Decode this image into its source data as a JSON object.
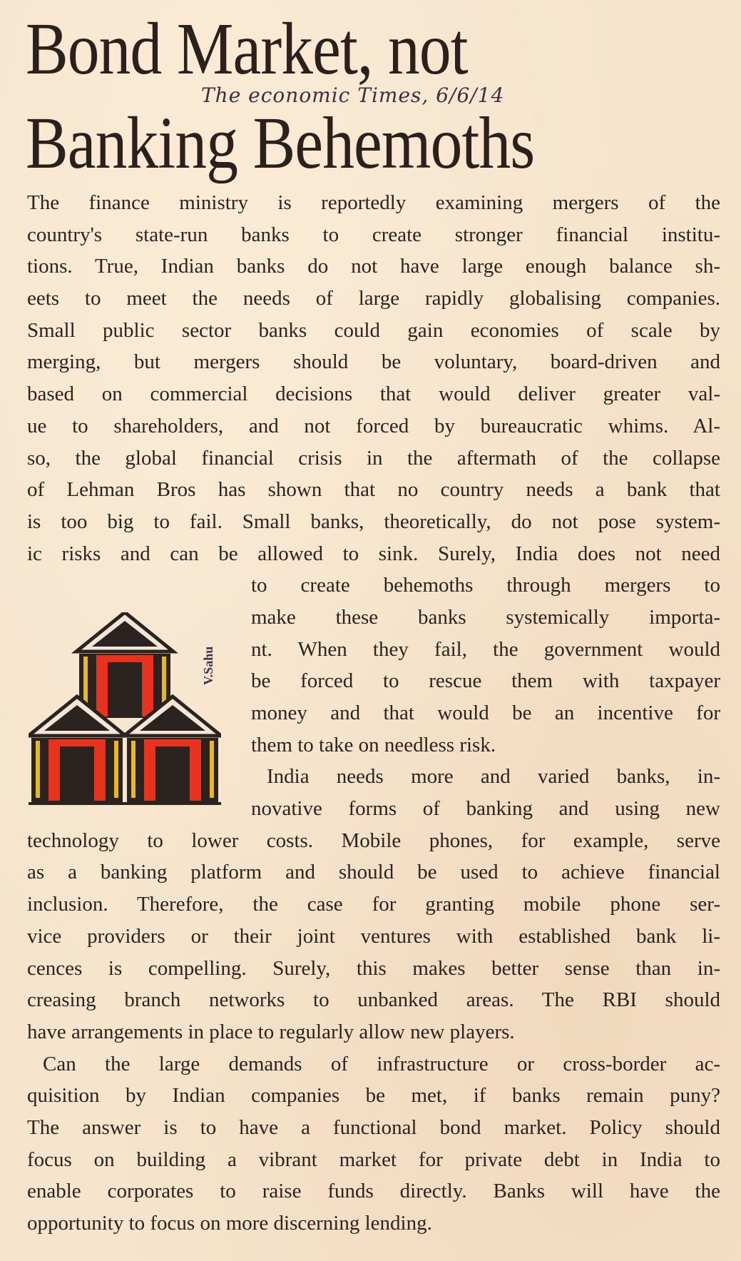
{
  "headline": {
    "line1": "Bond Market, not",
    "line2": "Banking Behemoths"
  },
  "handwritten_note": "The economic Times, 6/6/14",
  "illustration": {
    "description_icon": "three-bank-buildings-icon",
    "signature": "V.Sahu",
    "colors": {
      "red": "#e8321e",
      "dark": "#2a2320",
      "yellow": "#e8b820"
    }
  },
  "body_lines": [
    "The finance ministry is reportedly examining mergers of the",
    "country's state-run banks to create stronger financial institu-",
    "tions. True, Indian banks do not have large enough balance sh-",
    "eets to meet the needs of large rapidly globalising companies.",
    "Small public sector banks could gain economies of scale by",
    "merging, but mergers should be voluntary, board-driven and",
    "based on commercial decisions that would deliver greater val-",
    "ue to shareholders, and not forced by bureaucratic whims. Al-",
    "so, the global financial crisis in the aftermath of the collapse",
    "of Lehman Bros has shown that no country needs a bank that",
    "is too big to fail. Small banks, theoretically, do not pose system-",
    "ic risks and can be allowed to sink. Surely, India does not need",
    "to create behemoths through mergers to",
    "make these banks systemically importa-",
    "nt. When they fail, the government would",
    "be forced to rescue them with taxpayer",
    "money and that would be an incentive for",
    "them to take on needless risk.",
    "India needs more and varied banks, in-",
    "novative forms of banking and using new",
    "technology to lower costs. Mobile phones, for example, serve",
    "as a banking platform and should be used to achieve financial",
    "inclusion. Therefore, the case for granting mobile phone ser-",
    "vice providers or their joint ventures with established bank li-",
    "cences is compelling. Surely, this makes better sense than in-",
    "creasing branch networks to unbanked areas. The RBI should",
    "have arrangements in place to regularly allow new players.",
    "Can the large demands of infrastructure or cross-border ac-",
    "quisition by Indian companies be met, if banks remain puny?",
    "The answer is to have a functional bond market. Policy should",
    "focus on building a vibrant market for private debt in India to",
    "enable corporates to raise funds directly. Banks will have the",
    "opportunity to focus on more discerning lending."
  ]
}
